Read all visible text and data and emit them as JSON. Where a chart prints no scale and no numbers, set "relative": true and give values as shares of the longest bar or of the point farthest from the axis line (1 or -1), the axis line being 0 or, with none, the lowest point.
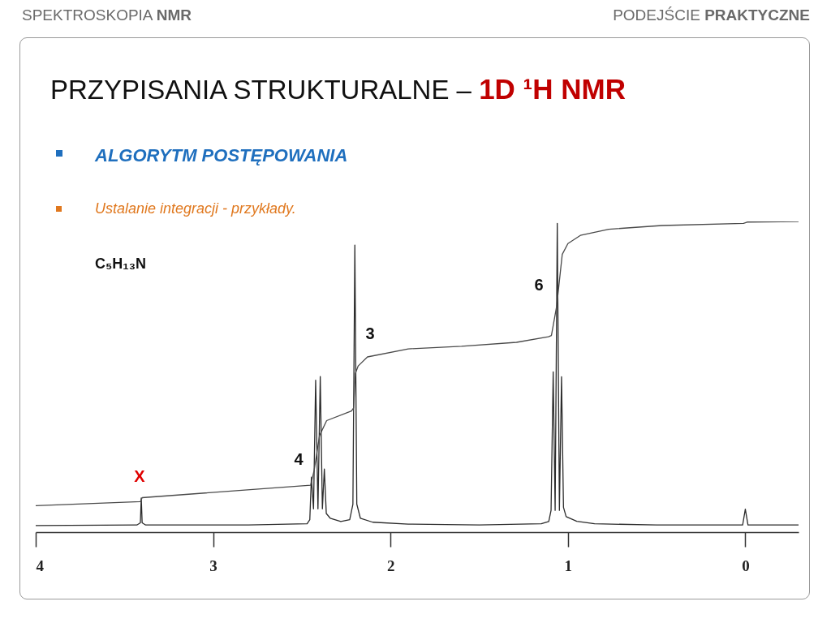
{
  "chart_data": {
    "type": "line",
    "title": "PRZYPISANIA STRUKTURALNE – 1D ¹H NMR",
    "subtitle": "ALGORYTM POSTĘPOWANIA",
    "annotations": [
      "SPEKTROSKOPIA NMR",
      "PODEJŚCIE PRAKTYCZNE",
      "Ustalanie integracji - przykłady.",
      "C₅H₁₃N",
      "X",
      "4",
      "3",
      "6"
    ],
    "relative": true,
    "xlim": [
      4,
      -0.3
    ],
    "xticks": [
      4,
      3,
      2,
      1,
      0
    ],
    "series": [
      {
        "color": "#2b2b2b",
        "x": [
          4.0,
          3.43,
          3.41,
          3.405,
          3.4,
          3.38,
          2.8,
          2.47,
          2.455,
          2.446,
          2.434,
          2.422,
          2.409,
          2.396,
          2.384,
          2.373,
          2.362,
          2.34,
          2.28,
          2.23,
          2.212,
          2.201,
          2.19,
          2.17,
          2.1,
          1.9,
          1.5,
          1.15,
          1.108,
          1.095,
          1.083,
          1.072,
          1.06,
          1.048,
          1.036,
          1.025,
          1.01,
          0.95,
          0.85,
          0.5,
          0.015,
          0.0,
          -0.015,
          -0.3
        ],
        "values": [
          0.021,
          0.023,
          0.03,
          0.11,
          0.03,
          0.023,
          0.023,
          0.027,
          0.04,
          0.177,
          0.075,
          0.489,
          0.075,
          0.501,
          0.075,
          0.203,
          0.06,
          0.045,
          0.034,
          0.04,
          0.09,
          0.924,
          0.09,
          0.045,
          0.032,
          0.026,
          0.023,
          0.027,
          0.034,
          0.07,
          0.516,
          0.07,
          0.994,
          0.07,
          0.5,
          0.08,
          0.05,
          0.035,
          0.027,
          0.023,
          0.023,
          0.074,
          0.023,
          0.023
        ]
      },
      {
        "color": "#4a4a4a",
        "x": [
          4.0,
          3.41,
          3.4,
          2.45,
          2.43,
          2.4,
          2.36,
          2.22,
          2.208,
          2.198,
          2.182,
          2.13,
          1.9,
          1.6,
          1.29,
          1.11,
          1.093,
          1.063,
          1.032,
          1.0,
          0.93,
          0.77,
          0.47,
          0.01,
          -0.01,
          -0.3
        ],
        "values": [
          0.085,
          0.098,
          0.111,
          0.151,
          0.2,
          0.311,
          0.359,
          0.39,
          0.4,
          0.511,
          0.535,
          0.564,
          0.59,
          0.598,
          0.611,
          0.629,
          0.633,
          0.729,
          0.894,
          0.929,
          0.955,
          0.975,
          0.987,
          0.994,
          0.998,
          1.0
        ]
      }
    ]
  }
}
